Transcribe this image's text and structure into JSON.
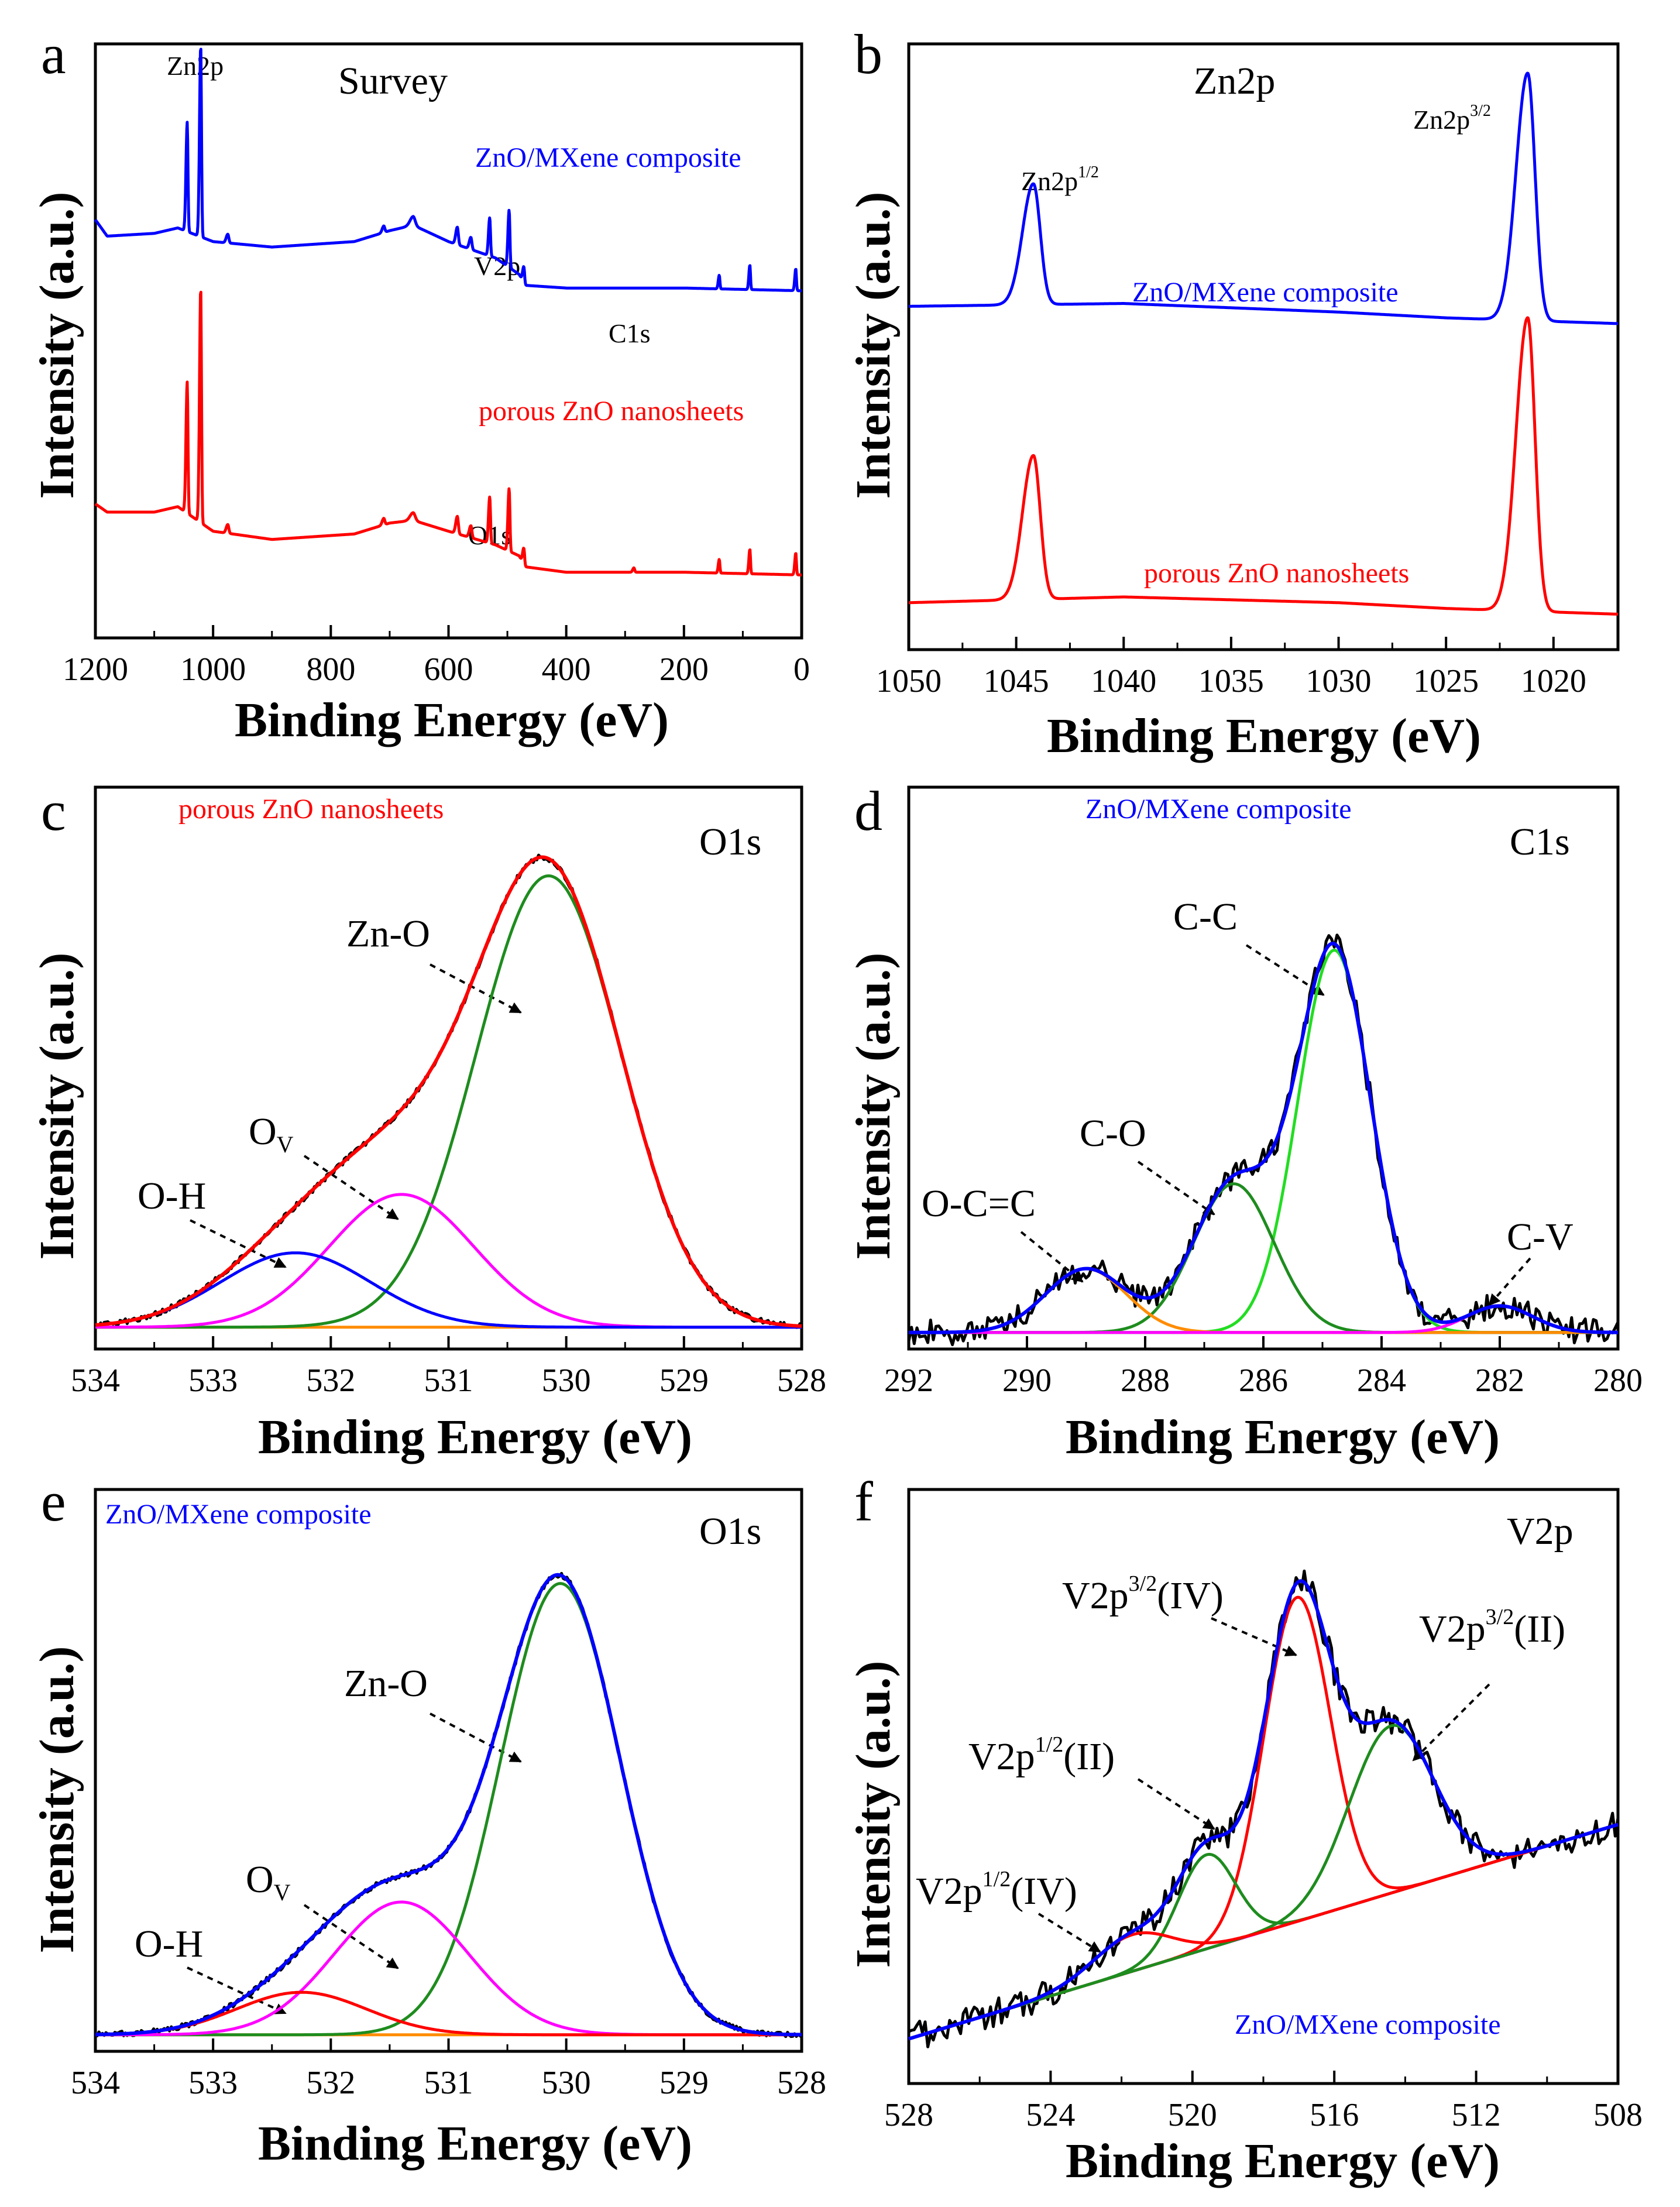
{
  "figure": {
    "panels": [
      {
        "id": "a",
        "letter": "a",
        "title": "Survey",
        "xlabel": "Binding Energy (eV)",
        "ylabel": "Intensity (a.u.)",
        "xlim": [
          1200,
          0
        ],
        "ticks": [
          1200,
          1000,
          800,
          600,
          400,
          200,
          0
        ],
        "tick_labels": [
          "1200",
          "1000",
          "800",
          "600",
          "400",
          "200",
          "0"
        ],
        "legends": [
          "ZnO/MXene composite",
          "porous ZnO nanosheets"
        ],
        "annotations": [
          "Zn2p",
          "V2p",
          "C1s",
          "O1s"
        ]
      },
      {
        "id": "b",
        "letter": "b",
        "title": "Zn2p",
        "xlabel": "Binding Energy (eV)",
        "ylabel": "Intensity (a.u.)",
        "xlim": [
          1050,
          1017
        ],
        "ticks": [
          1050,
          1045,
          1040,
          1035,
          1030,
          1025,
          1020
        ],
        "tick_labels": [
          "1050",
          "1045",
          "1040",
          "1035",
          "1030",
          "1025",
          "1020"
        ],
        "legends": [
          "ZnO/MXene composite",
          "porous ZnO nanosheets"
        ],
        "annotations": [
          {
            "base": "Zn2p",
            "sup": "1/2"
          },
          {
            "base": "Zn2p",
            "sup": "3/2"
          }
        ]
      },
      {
        "id": "c",
        "letter": "c",
        "title": "O1s",
        "xlabel": "Binding Energy (eV)",
        "ylabel": "Intensity (a.u.)",
        "xlim": [
          534,
          528
        ],
        "ticks": [
          534,
          533,
          532,
          531,
          530,
          529,
          528
        ],
        "tick_labels": [
          "534",
          "533",
          "532",
          "531",
          "530",
          "529",
          "528"
        ],
        "legends": [
          "porous ZnO nanosheets"
        ],
        "annotations": [
          "Zn-O",
          {
            "base": "O",
            "sub": "V"
          },
          "O-H"
        ]
      },
      {
        "id": "d",
        "letter": "d",
        "title": "C1s",
        "xlabel": "Binding Energy (eV)",
        "ylabel": "Intensity (a.u.)",
        "xlim": [
          292,
          280
        ],
        "ticks": [
          292,
          290,
          288,
          286,
          284,
          282,
          280
        ],
        "tick_labels": [
          "292",
          "290",
          "288",
          "286",
          "284",
          "282",
          "280"
        ],
        "legends": [
          "ZnO/MXene composite"
        ],
        "annotations": [
          "C-C",
          "C-O",
          "O-C=C",
          "C-V"
        ]
      },
      {
        "id": "e",
        "letter": "e",
        "title": "O1s",
        "xlabel": "Binding Energy (eV)",
        "ylabel": "Intensity (a.u.)",
        "xlim": [
          534,
          528
        ],
        "ticks": [
          534,
          533,
          532,
          531,
          530,
          529,
          528
        ],
        "tick_labels": [
          "534",
          "533",
          "532",
          "531",
          "530",
          "529",
          "528"
        ],
        "legends": [
          "ZnO/MXene composite"
        ],
        "annotations": [
          "Zn-O",
          {
            "base": "O",
            "sub": "V"
          },
          "O-H"
        ]
      },
      {
        "id": "f",
        "letter": "f",
        "title": "V2p",
        "xlabel": "Binding Energy (eV)",
        "ylabel": "Intensity (a.u.)",
        "xlim": [
          528,
          508
        ],
        "ticks": [
          528,
          524,
          520,
          516,
          512,
          508
        ],
        "tick_labels": [
          "528",
          "524",
          "520",
          "516",
          "512",
          "508"
        ],
        "legends": [
          "ZnO/MXene composite"
        ],
        "annotations": [
          {
            "base": "V2p",
            "sup": "3/2",
            "rest": "(IV)"
          },
          {
            "base": "V2p",
            "sup": "3/2",
            "rest": "(II)"
          },
          {
            "base": "V2p",
            "sup": "1/2",
            "rest": "(II)"
          },
          {
            "base": "V2p",
            "sup": "1/2",
            "rest": "(IV)"
          }
        ]
      }
    ]
  },
  "chart_data": [
    {
      "panel": "a",
      "type": "line",
      "title": "Survey",
      "xlabel": "Binding Energy (eV)",
      "ylabel": "Intensity (a.u.)",
      "xlim": [
        1200,
        0
      ],
      "ylim": [
        0,
        100
      ],
      "grid": false,
      "series": [
        {
          "name": "ZnO/MXene composite",
          "color": "#0000ff",
          "baseline": [
            [
              1200,
              70
            ],
            [
              1180,
              67
            ],
            [
              1100,
              67.5
            ],
            [
              1060,
              68.5
            ],
            [
              1000,
              66
            ],
            [
              900,
              65
            ],
            [
              760,
              66
            ],
            [
              700,
              68
            ],
            [
              660,
              69
            ],
            [
              600,
              66
            ],
            [
              520,
              63
            ],
            [
              480,
              60
            ],
            [
              470,
              58
            ],
            [
              400,
              57.5
            ],
            [
              200,
              57.5
            ],
            [
              0,
              57
            ]
          ],
          "peaks": [
            [
              1044,
              20,
              3
            ],
            [
              1021,
              35,
              3
            ],
            [
              975,
              1.6,
              4
            ],
            [
              710,
              1.2,
              4
            ],
            [
              660,
              1.6,
              8
            ],
            [
              585,
              3.2,
              4
            ],
            [
              562,
              2.2,
              4
            ],
            [
              530,
              7,
              3
            ],
            [
              497,
              10.5,
              3
            ],
            [
              472,
              3,
              3
            ],
            [
              140,
              2.5,
              2.5
            ],
            [
              88,
              4.5,
              2.5
            ],
            [
              10,
              4,
              2.5
            ]
          ]
        },
        {
          "name": "porous ZnO nanosheets",
          "color": "#ff0000",
          "baseline": [
            [
              1200,
              18
            ],
            [
              1180,
              16.5
            ],
            [
              1100,
              16.5
            ],
            [
              1060,
              17.5
            ],
            [
              1000,
              13
            ],
            [
              900,
              11.5
            ],
            [
              760,
              12.5
            ],
            [
              700,
              14.5
            ],
            [
              660,
              15
            ],
            [
              600,
              13
            ],
            [
              520,
              10.5
            ],
            [
              480,
              8.5
            ],
            [
              470,
              6.5
            ],
            [
              400,
              5.5
            ],
            [
              200,
              5.5
            ],
            [
              0,
              5
            ]
          ],
          "peaks": [
            [
              1044,
              24,
              3
            ],
            [
              1021,
              43,
              3
            ],
            [
              975,
              1.6,
              4
            ],
            [
              710,
              1.2,
              4
            ],
            [
              660,
              1.4,
              8
            ],
            [
              585,
              3.2,
              4
            ],
            [
              562,
              2.2,
              4
            ],
            [
              530,
              8.5,
              3
            ],
            [
              497,
              11.5,
              3
            ],
            [
              472,
              3,
              3
            ],
            [
              285,
              0.8,
              3
            ],
            [
              140,
              2.5,
              2.5
            ],
            [
              88,
              4.5,
              2.5
            ],
            [
              10,
              4,
              2.5
            ]
          ]
        }
      ]
    },
    {
      "panel": "b",
      "type": "line",
      "title": "Zn2p",
      "xlabel": "Binding Energy (eV)",
      "ylabel": "Intensity (a.u.)",
      "xlim": [
        1050,
        1017
      ],
      "ylim": [
        0,
        100
      ],
      "grid": false,
      "series": [
        {
          "name": "ZnO/MXene composite",
          "color": "#0000ff",
          "baseline": [
            [
              1050,
              56.5
            ],
            [
              1040,
              57
            ],
            [
              1030,
              55.5
            ],
            [
              1025,
              54.5
            ],
            [
              1017,
              53.5
            ]
          ],
          "peaks": [
            [
              1044.2,
              21,
              0.75
            ],
            [
              1021.2,
              43,
              0.8
            ]
          ]
        },
        {
          "name": "porous ZnO nanosheets",
          "color": "#ff0000",
          "baseline": [
            [
              1050,
              5
            ],
            [
              1040,
              6
            ],
            [
              1030,
              5
            ],
            [
              1025,
              4
            ],
            [
              1017,
              3
            ]
          ],
          "peaks": [
            [
              1044.2,
              25,
              0.75
            ],
            [
              1021.2,
              51,
              0.8
            ]
          ]
        }
      ]
    },
    {
      "panel": "c",
      "type": "line",
      "title": "O1s",
      "xlabel": "Binding Energy (eV)",
      "ylabel": "Intensity (a.u.)",
      "xlim": [
        534,
        528
      ],
      "ylim": [
        0,
        100
      ],
      "grid": false,
      "components": [
        {
          "name": "Zn-O",
          "color": "#1e8c1e",
          "center": 530.15,
          "height": 85,
          "fwhm": 1.45
        },
        {
          "name": "Ov",
          "color": "#ff00ff",
          "center": 531.4,
          "height": 25,
          "fwhm": 1.45
        },
        {
          "name": "O-H",
          "color": "#0000ff",
          "center": 532.3,
          "height": 14,
          "fwhm": 1.5
        },
        {
          "name": "Baseline",
          "color": "#ff8c00",
          "flat": 2
        }
      ],
      "envelope": {
        "name": "Fit",
        "color": "#ff0000"
      },
      "raw": {
        "name": "Raw",
        "color": "#000000"
      }
    },
    {
      "panel": "d",
      "type": "line",
      "title": "C1s",
      "xlabel": "Binding Energy (eV)",
      "ylabel": "Intensity (a.u.)",
      "xlim": [
        292,
        280
      ],
      "ylim": [
        0,
        100
      ],
      "grid": false,
      "components": [
        {
          "name": "C-C",
          "color": "#22dd22",
          "center": 284.8,
          "height": 72,
          "fwhm": 1.45
        },
        {
          "name": "C-O",
          "color": "#1e8c1e",
          "center": 286.5,
          "height": 28,
          "fwhm": 1.6
        },
        {
          "name": "O-C=C",
          "color": "#ff8c00",
          "center": 289.0,
          "height": 12,
          "fwhm": 1.6
        },
        {
          "name": "C-V",
          "color": "#ff00ff",
          "center": 282.0,
          "height": 5,
          "fwhm": 1.3
        },
        {
          "name": "Baseline",
          "color": "#ff00ff",
          "flat": 1
        }
      ],
      "envelope": {
        "name": "Fit",
        "color": "#0000ff"
      },
      "raw": {
        "name": "Raw",
        "color": "#000000"
      }
    },
    {
      "panel": "e",
      "type": "line",
      "title": "O1s",
      "xlabel": "Binding Energy (eV)",
      "ylabel": "Intensity (a.u.)",
      "xlim": [
        534,
        528
      ],
      "ylim": [
        0,
        100
      ],
      "grid": false,
      "components": [
        {
          "name": "Zn-O",
          "color": "#1e8c1e",
          "center": 530.05,
          "height": 85,
          "fwhm": 1.2
        },
        {
          "name": "Ov",
          "color": "#ff00ff",
          "center": 531.4,
          "height": 25,
          "fwhm": 1.35
        },
        {
          "name": "O-H",
          "color": "#ff0000",
          "center": 532.25,
          "height": 8,
          "fwhm": 1.3
        },
        {
          "name": "Baseline",
          "color": "#ff8c00",
          "flat": 1
        }
      ],
      "envelope": {
        "name": "Fit",
        "color": "#0000ff"
      },
      "raw": {
        "name": "Raw",
        "color": "#000000"
      }
    },
    {
      "panel": "f",
      "type": "line",
      "title": "V2p",
      "xlabel": "Binding Energy (eV)",
      "ylabel": "Intensity (a.u.)",
      "xlim": [
        528,
        508
      ],
      "ylim": [
        0,
        100
      ],
      "grid": false,
      "components": [
        {
          "name": "V2p3/2(IV)",
          "color": "#ff0000",
          "center": 517.05,
          "height": 62,
          "fwhm": 2.2
        },
        {
          "name": "V2p3/2(II)",
          "color": "#1e8c1e",
          "center": 514.4,
          "height": 32,
          "fwhm": 2.8
        },
        {
          "name": "V2p1/2(II)",
          "color": "#1e8c1e",
          "center": 519.6,
          "height": 18,
          "fwhm": 1.9
        },
        {
          "name": "V2p1/2(IV)",
          "color": "#ff0000",
          "center": 521.7,
          "height": 7,
          "fwhm": 2.6
        },
        {
          "name": "Baseline",
          "color": "#ff00ff",
          "linear": [
            [
              528,
              4
            ],
            [
              508,
              45
            ]
          ]
        }
      ],
      "envelope": {
        "name": "Fit",
        "color": "#0000ff"
      },
      "raw": {
        "name": "Raw",
        "color": "#000000"
      }
    }
  ]
}
